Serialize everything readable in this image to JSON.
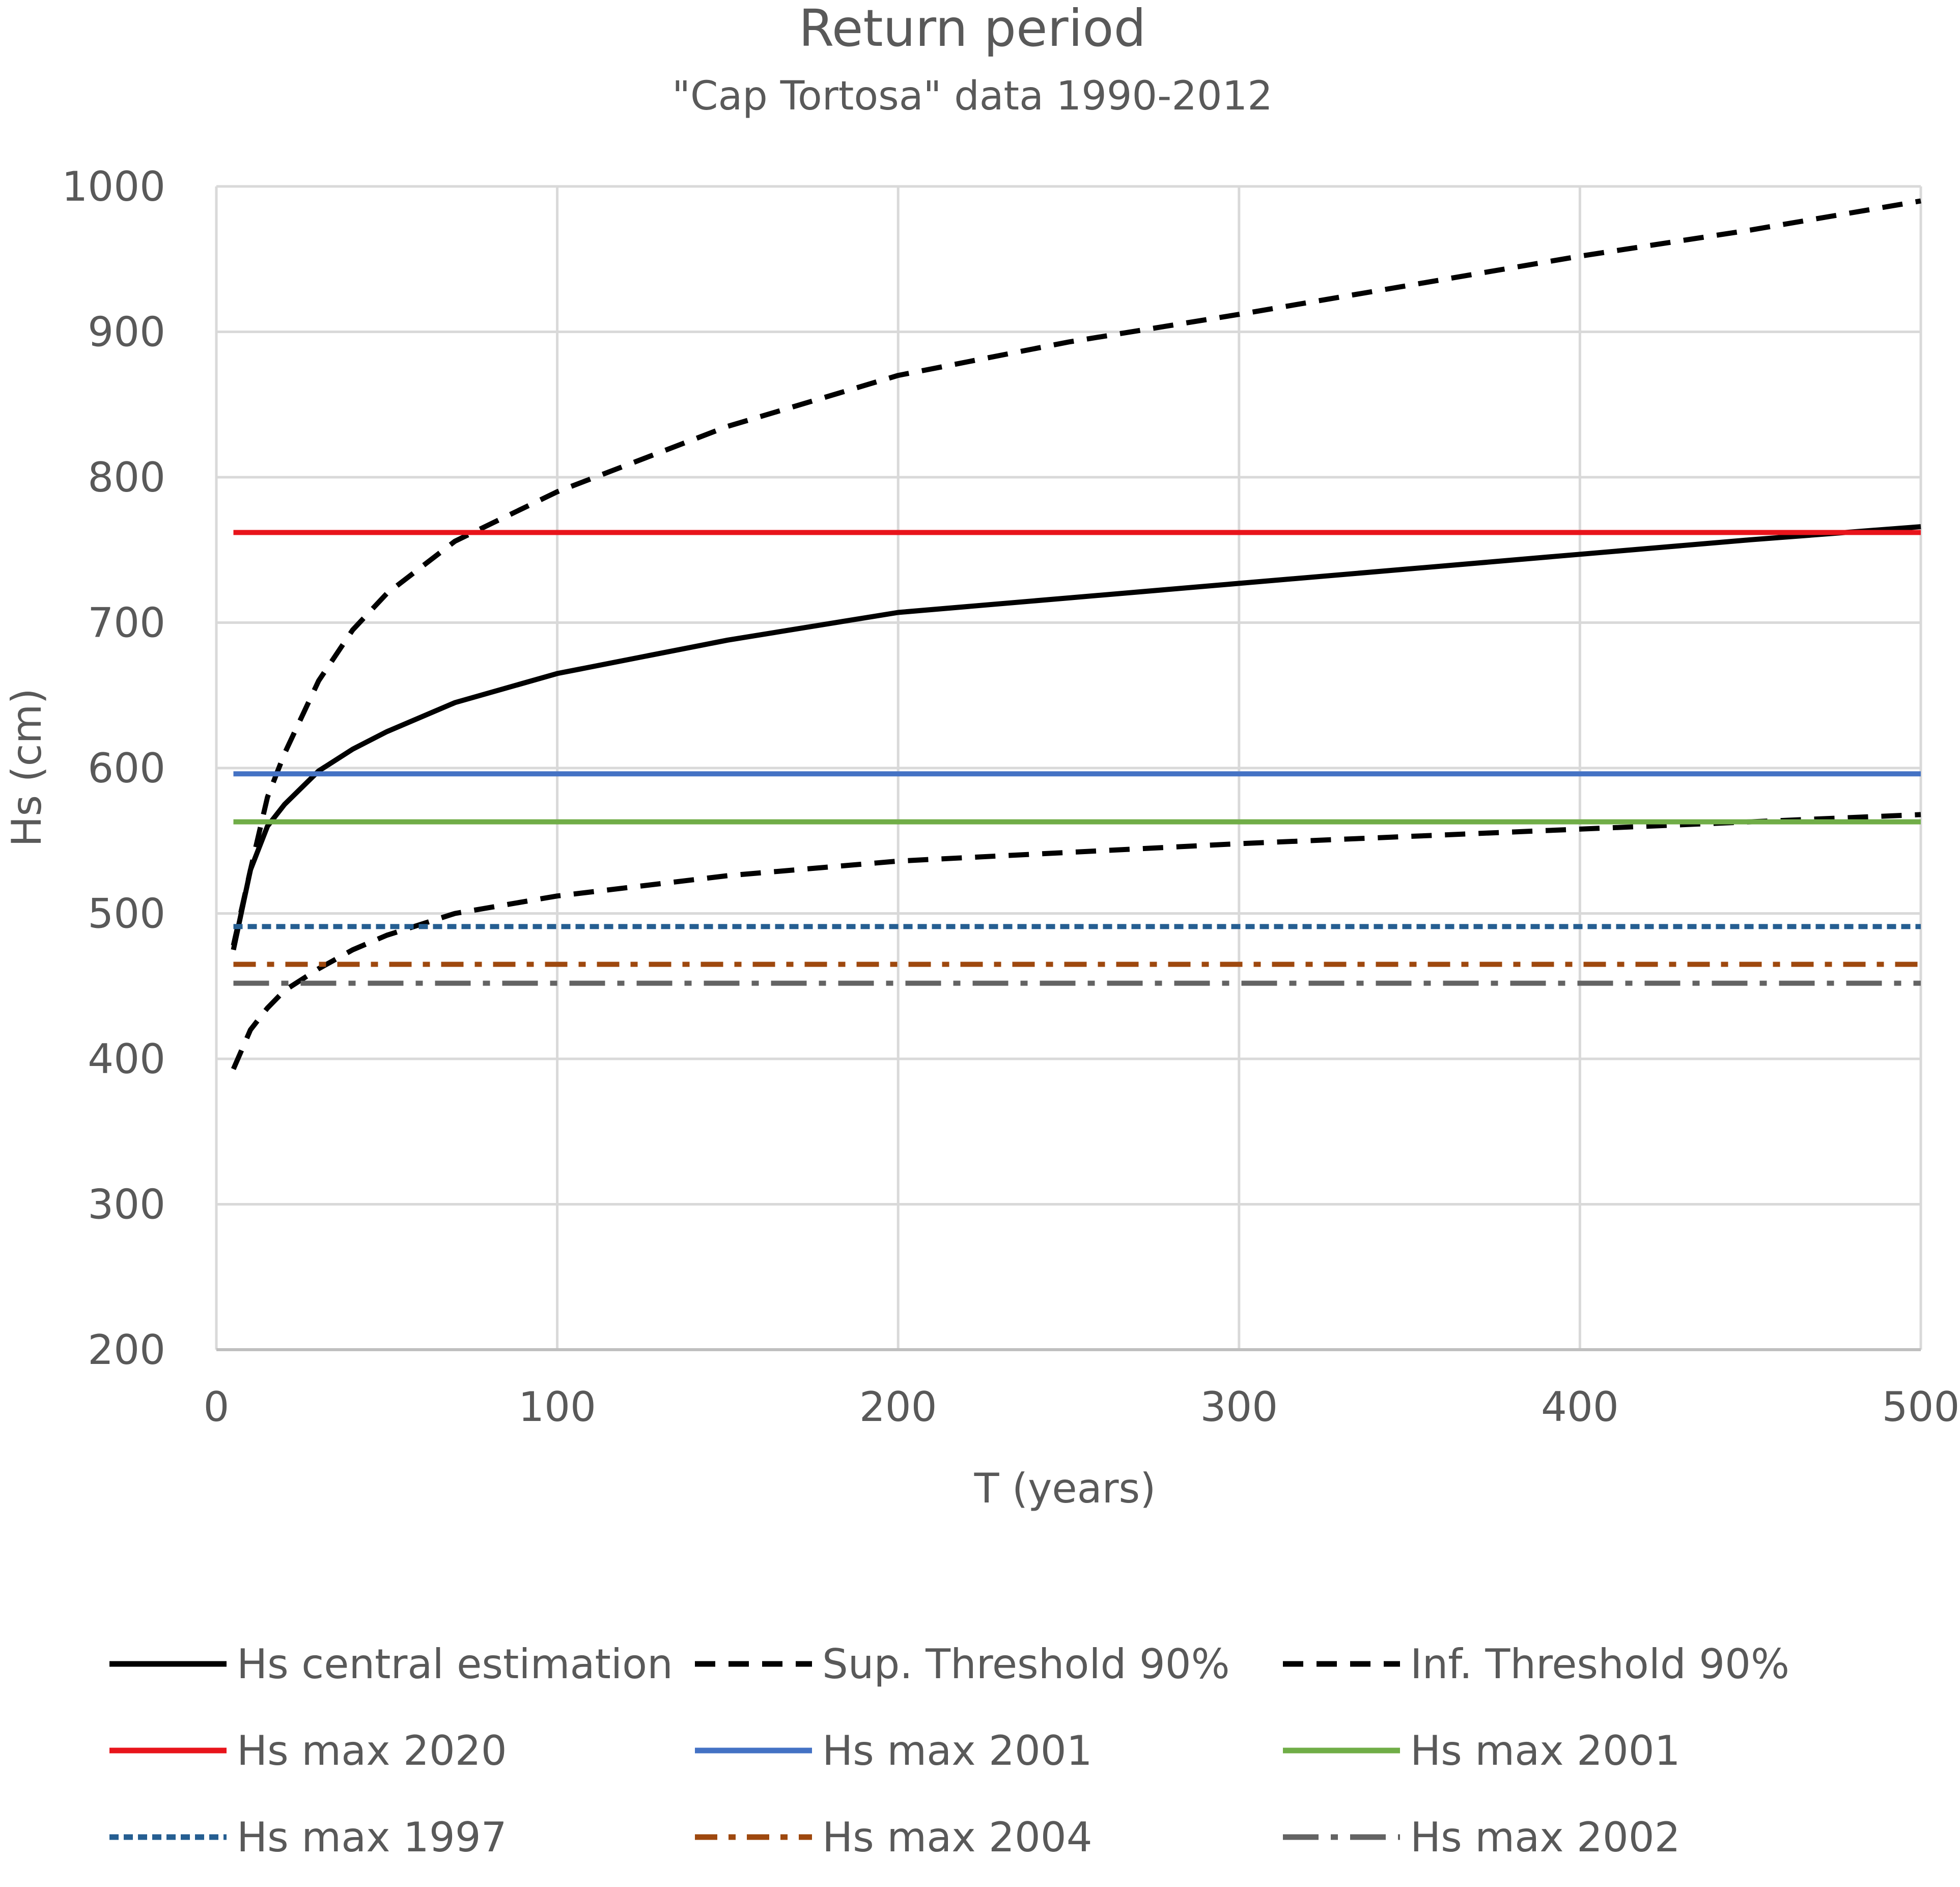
{
  "chart_data": {
    "type": "line",
    "title": "Return period",
    "subtitle": "\"Cap Tortosa\" data 1990-2012",
    "xlabel": "T (years)",
    "ylabel": "Hs (cm)",
    "xlim": [
      0,
      500
    ],
    "ylim": [
      200,
      1000
    ],
    "xticks": [
      0,
      100,
      200,
      300,
      400,
      500
    ],
    "yticks": [
      200,
      300,
      400,
      500,
      600,
      700,
      800,
      900,
      1000
    ],
    "grid": true,
    "legend_position": "bottom",
    "series": [
      {
        "name": "Hs central estimation",
        "color": "#000000",
        "style": "solid",
        "x": [
          5,
          10,
          15,
          20,
          30,
          40,
          50,
          70,
          100,
          150,
          200,
          250,
          300,
          350,
          400,
          450,
          500
        ],
        "y": [
          475,
          530,
          560,
          575,
          598,
          613,
          625,
          645,
          665,
          688,
          707,
          717,
          727,
          737,
          747,
          757,
          766
        ]
      },
      {
        "name": "Sup. Threshold 90%",
        "color": "#000000",
        "style": "dashed",
        "x": [
          5,
          10,
          15,
          20,
          30,
          40,
          50,
          70,
          100,
          150,
          200,
          250,
          300,
          350,
          400,
          450,
          500
        ],
        "y": [
          478,
          530,
          580,
          610,
          660,
          695,
          720,
          756,
          790,
          835,
          870,
          893,
          912,
          932,
          952,
          970,
          990
        ]
      },
      {
        "name": "Inf. Threshold 90%",
        "color": "#000000",
        "style": "dashed",
        "x": [
          5,
          10,
          15,
          20,
          30,
          40,
          50,
          70,
          100,
          150,
          200,
          250,
          300,
          350,
          400,
          450,
          500
        ],
        "y": [
          393,
          420,
          435,
          447,
          462,
          475,
          485,
          500,
          512,
          526,
          536,
          542,
          548,
          553,
          558,
          563,
          568
        ]
      },
      {
        "name": "Hs max 2020",
        "color": "#e8141b",
        "style": "solid",
        "x": [
          5,
          500
        ],
        "y": [
          762,
          762
        ]
      },
      {
        "name": "Hs max 2001",
        "color": "#4472c4",
        "style": "solid",
        "x": [
          5,
          500
        ],
        "y": [
          596,
          596
        ]
      },
      {
        "name": "Hs max 2001",
        "color": "#70ad47",
        "style": "solid",
        "x": [
          5,
          500
        ],
        "y": [
          563,
          563
        ]
      },
      {
        "name": "Hs max 1997",
        "color": "#255e91",
        "style": "dotted",
        "x": [
          5,
          500
        ],
        "y": [
          491,
          491
        ]
      },
      {
        "name": "Hs max 2004",
        "color": "#9e480e",
        "style": "dashdot",
        "x": [
          5,
          500
        ],
        "y": [
          465,
          465
        ]
      },
      {
        "name": "Hs max 2002",
        "color": "#636363",
        "style": "longdashdot",
        "x": [
          5,
          500
        ],
        "y": [
          452,
          452
        ]
      }
    ]
  }
}
